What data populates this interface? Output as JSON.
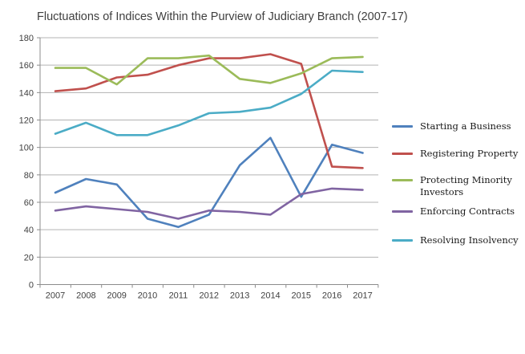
{
  "title": "Fluctuations of Indices Within the Purview of Judiciary Branch (2007-17)",
  "chart_data": {
    "type": "line",
    "title": "Fluctuations of Indices Within the Purview of Judiciary Branch (2007-17)",
    "x": [
      "2007",
      "2008",
      "2009",
      "2010",
      "2011",
      "2012",
      "2013",
      "2014",
      "2015",
      "2016",
      "2017"
    ],
    "yticks": [
      "0",
      "20",
      "40",
      "60",
      "80",
      "100",
      "120",
      "140",
      "160",
      "180"
    ],
    "ylim": [
      0,
      180
    ],
    "grid": true,
    "legend_position": "right",
    "colors": {
      "starting_a_business": "#4F81BD",
      "registering_property": "#C0504D",
      "protecting_minority_investors": "#9BBB59",
      "enforcing_contracts": "#8064A2",
      "resolving_insolvency": "#4BACC6",
      "gridline": "#b3b3b3",
      "axis": "#8c8c8c"
    },
    "series": [
      {
        "name": "Starting a Business",
        "color": "#4F81BD",
        "values": [
          67,
          77,
          73,
          48,
          42,
          51,
          87,
          107,
          64,
          102,
          96
        ]
      },
      {
        "name": "Registering Property",
        "color": "#C0504D",
        "values": [
          141,
          143,
          151,
          153,
          160,
          165,
          165,
          168,
          161,
          86,
          85
        ]
      },
      {
        "name": "Protecting Minority Investors",
        "color": "#9BBB59",
        "values": [
          158,
          158,
          146,
          165,
          165,
          167,
          150,
          147,
          154,
          165,
          166
        ]
      },
      {
        "name": "Enforcing Contracts",
        "color": "#8064A2",
        "values": [
          54,
          57,
          55,
          53,
          48,
          54,
          53,
          51,
          66,
          70,
          69
        ]
      },
      {
        "name": "Resolving Insolvency",
        "color": "#4BACC6",
        "values": [
          110,
          118,
          109,
          109,
          116,
          125,
          126,
          129,
          139,
          156,
          155
        ]
      }
    ]
  }
}
